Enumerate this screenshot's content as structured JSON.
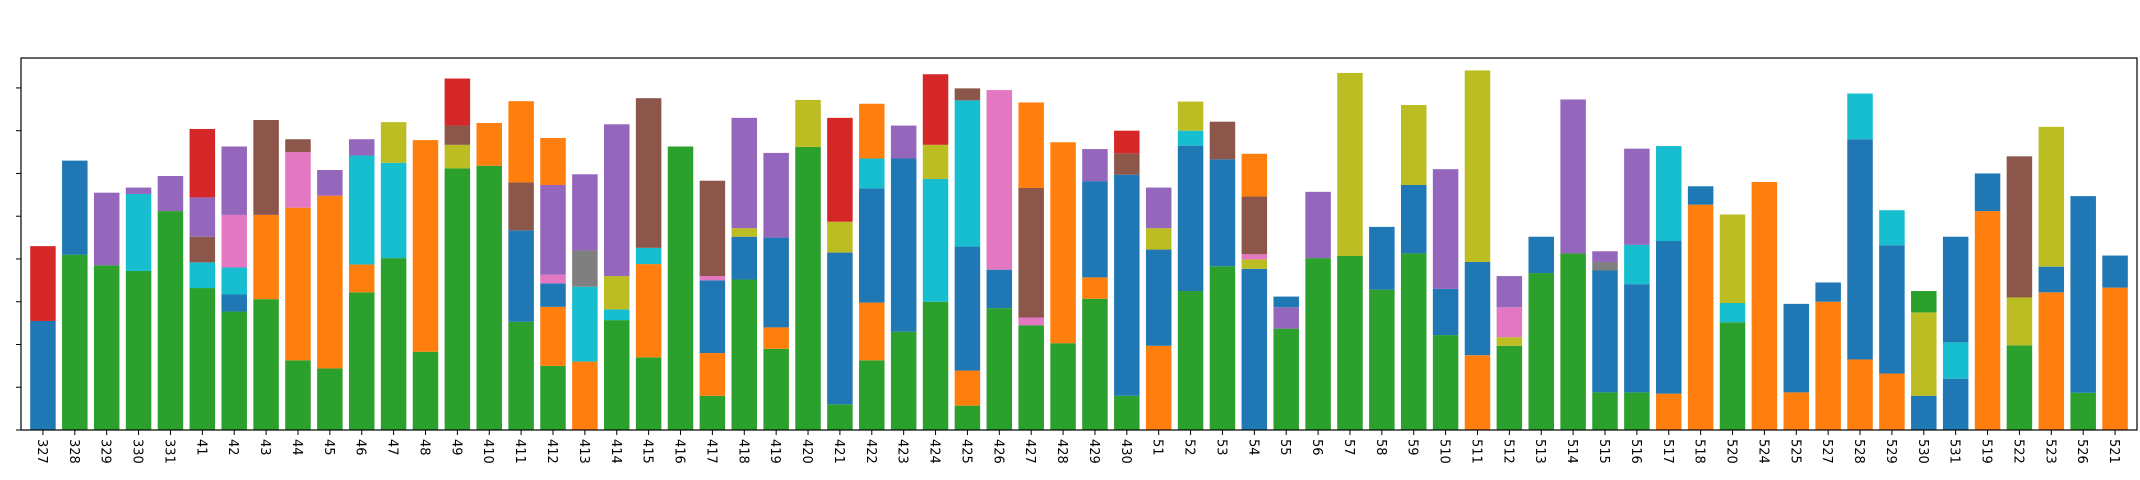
{
  "chart_data": {
    "type": "bar",
    "stacked": true,
    "title": "",
    "xlabel": "",
    "ylabel": "",
    "ylim": [
      0,
      870
    ],
    "grid": false,
    "legend": "none",
    "palette": {
      "orange": "#ff7f0e",
      "green": "#2ca02c",
      "blue": "#1f77b4",
      "cyan": "#17becf",
      "purple": "#9467bd",
      "brown": "#8c564b",
      "red": "#d62728",
      "pink": "#e377c2",
      "olive": "#bcbd22",
      "gray": "#7f7f7f"
    },
    "bars": [
      {
        "label": "327",
        "segments": [
          [
            "blue",
            255
          ],
          [
            "red",
            175
          ]
        ]
      },
      {
        "label": "328",
        "segments": [
          [
            "green",
            410
          ],
          [
            "blue",
            220
          ]
        ]
      },
      {
        "label": "329",
        "segments": [
          [
            "green",
            385
          ],
          [
            "purple",
            170
          ]
        ]
      },
      {
        "label": "330",
        "segments": [
          [
            "green",
            372
          ],
          [
            "cyan",
            180
          ],
          [
            "purple",
            15
          ]
        ]
      },
      {
        "label": "331",
        "segments": [
          [
            "green",
            512
          ],
          [
            "purple",
            82
          ]
        ]
      },
      {
        "label": "41",
        "segments": [
          [
            "green",
            332
          ],
          [
            "cyan",
            60
          ],
          [
            "brown",
            60
          ],
          [
            "purple",
            92
          ],
          [
            "red",
            160
          ]
        ]
      },
      {
        "label": "42",
        "segments": [
          [
            "green",
            277
          ],
          [
            "blue",
            40
          ],
          [
            "cyan",
            63
          ],
          [
            "pink",
            123
          ],
          [
            "purple",
            160
          ]
        ]
      },
      {
        "label": "43",
        "segments": [
          [
            "green",
            306
          ],
          [
            "orange",
            197
          ],
          [
            "brown",
            222
          ]
        ]
      },
      {
        "label": "44",
        "segments": [
          [
            "green",
            163
          ],
          [
            "orange",
            357
          ],
          [
            "pink",
            130
          ],
          [
            "brown",
            30
          ]
        ]
      },
      {
        "label": "45",
        "segments": [
          [
            "green",
            144
          ],
          [
            "orange",
            404
          ],
          [
            "purple",
            60
          ]
        ]
      },
      {
        "label": "46",
        "segments": [
          [
            "green",
            322
          ],
          [
            "orange",
            65
          ],
          [
            "cyan",
            255
          ],
          [
            "purple",
            38
          ]
        ]
      },
      {
        "label": "47",
        "segments": [
          [
            "green",
            402
          ],
          [
            "cyan",
            223
          ],
          [
            "olive",
            95
          ]
        ]
      },
      {
        "label": "48",
        "segments": [
          [
            "green",
            183
          ],
          [
            "orange",
            495
          ]
        ]
      },
      {
        "label": "49",
        "segments": [
          [
            "green",
            612
          ],
          [
            "olive",
            55
          ],
          [
            "brown",
            45
          ],
          [
            "red",
            110
          ]
        ]
      },
      {
        "label": "410",
        "segments": [
          [
            "green",
            618
          ],
          [
            "orange",
            100
          ]
        ]
      },
      {
        "label": "411",
        "segments": [
          [
            "green",
            253
          ],
          [
            "blue",
            214
          ],
          [
            "brown",
            112
          ],
          [
            "orange",
            190
          ]
        ]
      },
      {
        "label": "412",
        "segments": [
          [
            "green",
            150
          ],
          [
            "orange",
            138
          ],
          [
            "blue",
            55
          ],
          [
            "pink",
            20
          ],
          [
            "purple",
            210
          ],
          [
            "orange",
            110
          ]
        ]
      },
      {
        "label": "413",
        "segments": [
          [
            "orange",
            160
          ],
          [
            "cyan",
            175
          ],
          [
            "gray",
            85
          ],
          [
            "purple",
            178
          ]
        ]
      },
      {
        "label": "414",
        "segments": [
          [
            "green",
            257
          ],
          [
            "cyan",
            25
          ],
          [
            "olive",
            78
          ],
          [
            "purple",
            355
          ]
        ]
      },
      {
        "label": "415",
        "segments": [
          [
            "green",
            170
          ],
          [
            "orange",
            218
          ],
          [
            "cyan",
            38
          ],
          [
            "brown",
            350
          ]
        ]
      },
      {
        "label": "416",
        "segments": [
          [
            "green",
            663
          ]
        ]
      },
      {
        "label": "417",
        "segments": [
          [
            "green",
            80
          ],
          [
            "orange",
            100
          ],
          [
            "blue",
            170
          ],
          [
            "pink",
            10
          ],
          [
            "brown",
            223
          ]
        ]
      },
      {
        "label": "418",
        "segments": [
          [
            "green",
            352
          ],
          [
            "blue",
            100
          ],
          [
            "olive",
            20
          ],
          [
            "purple",
            258
          ]
        ]
      },
      {
        "label": "419",
        "segments": [
          [
            "green",
            190
          ],
          [
            "orange",
            50
          ],
          [
            "blue",
            210
          ],
          [
            "purple",
            198
          ]
        ]
      },
      {
        "label": "420",
        "segments": [
          [
            "green",
            662
          ],
          [
            "olive",
            110
          ]
        ]
      },
      {
        "label": "421",
        "segments": [
          [
            "green",
            60
          ],
          [
            "blue",
            355
          ],
          [
            "olive",
            72
          ],
          [
            "red",
            243
          ]
        ]
      },
      {
        "label": "422",
        "segments": [
          [
            "green",
            163
          ],
          [
            "orange",
            135
          ],
          [
            "blue",
            267
          ],
          [
            "cyan",
            70
          ],
          [
            "orange",
            128
          ]
        ]
      },
      {
        "label": "423",
        "segments": [
          [
            "green",
            230
          ],
          [
            "blue",
            405
          ],
          [
            "purple",
            77
          ]
        ]
      },
      {
        "label": "424",
        "segments": [
          [
            "green",
            300
          ],
          [
            "cyan",
            287
          ],
          [
            "olive",
            80
          ],
          [
            "red",
            165
          ]
        ]
      },
      {
        "label": "425",
        "segments": [
          [
            "green",
            57
          ],
          [
            "orange",
            82
          ],
          [
            "blue",
            290
          ],
          [
            "cyan",
            342
          ],
          [
            "brown",
            28
          ]
        ]
      },
      {
        "label": "426",
        "segments": [
          [
            "green",
            285
          ],
          [
            "blue",
            90
          ],
          [
            "pink",
            420
          ]
        ]
      },
      {
        "label": "427",
        "segments": [
          [
            "green",
            245
          ],
          [
            "pink",
            18
          ],
          [
            "brown",
            303
          ],
          [
            "orange",
            200
          ]
        ]
      },
      {
        "label": "428",
        "segments": [
          [
            "green",
            203
          ],
          [
            "orange",
            470
          ]
        ]
      },
      {
        "label": "429",
        "segments": [
          [
            "green",
            307
          ],
          [
            "orange",
            50
          ],
          [
            "blue",
            225
          ],
          [
            "purple",
            75
          ]
        ]
      },
      {
        "label": "430",
        "segments": [
          [
            "green",
            80
          ],
          [
            "blue",
            517
          ],
          [
            "brown",
            50
          ],
          [
            "red",
            53
          ]
        ]
      },
      {
        "label": "51",
        "segments": [
          [
            "orange",
            197
          ],
          [
            "blue",
            225
          ],
          [
            "olive",
            50
          ],
          [
            "purple",
            95
          ]
        ]
      },
      {
        "label": "52",
        "segments": [
          [
            "green",
            325
          ],
          [
            "blue",
            340
          ],
          [
            "cyan",
            35
          ],
          [
            "olive",
            68
          ]
        ]
      },
      {
        "label": "53",
        "segments": [
          [
            "green",
            383
          ],
          [
            "blue",
            250
          ],
          [
            "brown",
            88
          ]
        ]
      },
      {
        "label": "54",
        "segments": [
          [
            "blue",
            377
          ],
          [
            "olive",
            22
          ],
          [
            "pink",
            12
          ],
          [
            "brown",
            135
          ],
          [
            "orange",
            100
          ]
        ]
      },
      {
        "label": "55",
        "segments": [
          [
            "green",
            237
          ],
          [
            "purple",
            50
          ],
          [
            "blue",
            25
          ]
        ]
      },
      {
        "label": "56",
        "segments": [
          [
            "green",
            402
          ],
          [
            "purple",
            155
          ]
        ]
      },
      {
        "label": "57",
        "segments": [
          [
            "green",
            407
          ],
          [
            "olive",
            428
          ]
        ]
      },
      {
        "label": "58",
        "segments": [
          [
            "green",
            328
          ],
          [
            "blue",
            147
          ]
        ]
      },
      {
        "label": "59",
        "segments": [
          [
            "green",
            413
          ],
          [
            "blue",
            160
          ],
          [
            "olive",
            187
          ]
        ]
      },
      {
        "label": "510",
        "segments": [
          [
            "green",
            222
          ],
          [
            "blue",
            108
          ],
          [
            "purple",
            280
          ]
        ]
      },
      {
        "label": "511",
        "segments": [
          [
            "orange",
            175
          ],
          [
            "blue",
            218
          ],
          [
            "olive",
            448
          ]
        ]
      },
      {
        "label": "512",
        "segments": [
          [
            "green",
            197
          ],
          [
            "olive",
            20
          ],
          [
            "pink",
            70
          ],
          [
            "purple",
            73
          ]
        ]
      },
      {
        "label": "513",
        "segments": [
          [
            "green",
            367
          ],
          [
            "blue",
            85
          ]
        ]
      },
      {
        "label": "514",
        "segments": [
          [
            "green",
            413
          ],
          [
            "purple",
            360
          ]
        ]
      },
      {
        "label": "515",
        "segments": [
          [
            "green",
            88
          ],
          [
            "blue",
            285
          ],
          [
            "gray",
            20
          ],
          [
            "purple",
            25
          ]
        ]
      },
      {
        "label": "516",
        "segments": [
          [
            "green",
            88
          ],
          [
            "blue",
            253
          ],
          [
            "cyan",
            92
          ],
          [
            "purple",
            225
          ]
        ]
      },
      {
        "label": "517",
        "segments": [
          [
            "orange",
            85
          ],
          [
            "blue",
            357
          ],
          [
            "cyan",
            222
          ]
        ]
      },
      {
        "label": "518",
        "segments": [
          [
            "orange",
            527
          ],
          [
            "blue",
            43
          ]
        ]
      },
      {
        "label": "520",
        "segments": [
          [
            "green",
            252
          ],
          [
            "cyan",
            45
          ],
          [
            "olive",
            207
          ]
        ]
      },
      {
        "label": "524",
        "segments": [
          [
            "orange",
            580
          ]
        ]
      },
      {
        "label": "525",
        "segments": [
          [
            "orange",
            88
          ],
          [
            "blue",
            207
          ]
        ]
      },
      {
        "label": "527",
        "segments": [
          [
            "orange",
            300
          ],
          [
            "blue",
            45
          ]
        ]
      },
      {
        "label": "528",
        "segments": [
          [
            "orange",
            165
          ],
          [
            "blue",
            515
          ],
          [
            "cyan",
            107
          ]
        ]
      },
      {
        "label": "529",
        "segments": [
          [
            "orange",
            132
          ],
          [
            "blue",
            300
          ],
          [
            "cyan",
            82
          ]
        ]
      },
      {
        "label": "530",
        "segments": [
          [
            "blue",
            80
          ],
          [
            "olive",
            195
          ],
          [
            "green",
            50
          ]
        ]
      },
      {
        "label": "531",
        "segments": [
          [
            "blue",
            120
          ],
          [
            "cyan",
            85
          ],
          [
            "blue",
            247
          ]
        ]
      },
      {
        "label": "519",
        "segments": [
          [
            "orange",
            512
          ],
          [
            "blue",
            88
          ]
        ]
      },
      {
        "label": "522",
        "segments": [
          [
            "green",
            198
          ],
          [
            "olive",
            112
          ],
          [
            "brown",
            330
          ]
        ]
      },
      {
        "label": "523",
        "segments": [
          [
            "orange",
            322
          ],
          [
            "blue",
            60
          ],
          [
            "olive",
            327
          ]
        ]
      },
      {
        "label": "526",
        "segments": [
          [
            "green",
            87
          ],
          [
            "blue",
            460
          ]
        ]
      },
      {
        "label": "521",
        "segments": [
          [
            "orange",
            333
          ],
          [
            "blue",
            75
          ]
        ]
      }
    ]
  }
}
